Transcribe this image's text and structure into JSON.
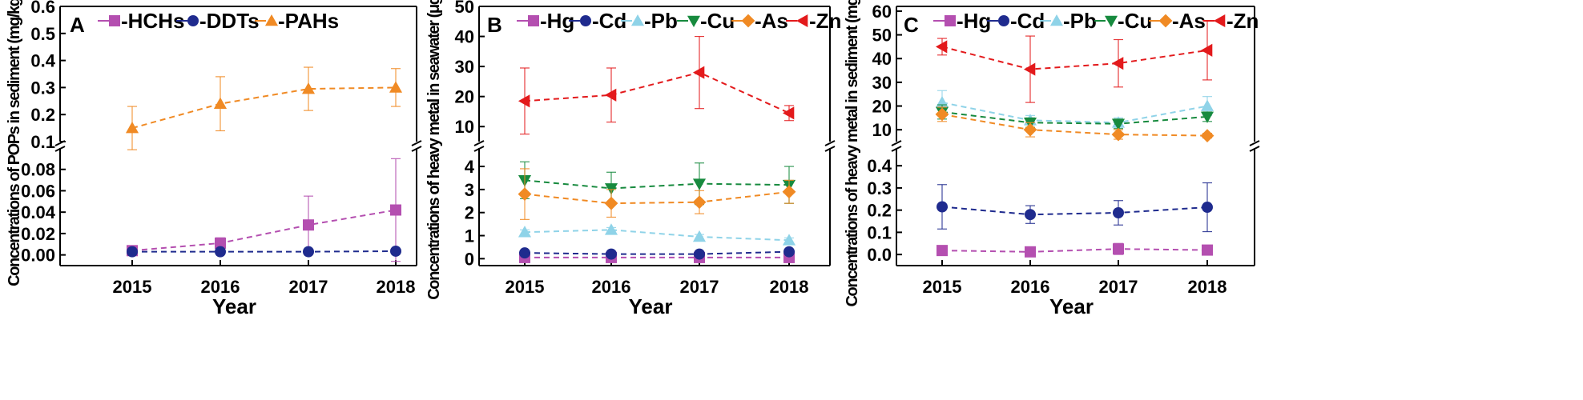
{
  "chart_data": [
    {
      "type": "line",
      "panel_label": "A",
      "title": "",
      "xlabel": "Year",
      "ylabel": "Concentrations of POPs in sediment (mg/kg)",
      "categories": [
        "2015",
        "2016",
        "2017",
        "2018"
      ],
      "broken_axis": true,
      "upper_axis": {
        "ylim": [
          0.1,
          0.6
        ],
        "ticks": [
          "0.1",
          "0.2",
          "0.3",
          "0.4",
          "0.5",
          "0.6"
        ]
      },
      "lower_axis": {
        "ylim": [
          -0.01,
          0.1
        ],
        "ticks": [
          "0.00",
          "0.02",
          "0.04",
          "0.06",
          "0.08"
        ]
      },
      "legend_position": "top",
      "series": [
        {
          "name": "HCHs",
          "legend": "-HCHs",
          "marker": "square",
          "color": "#b44fb0",
          "segment": "lower",
          "values": [
            0.004,
            0.011,
            0.028,
            0.042
          ],
          "err_low": [
            0.002,
            0.005,
            0.027,
            0.048
          ],
          "err_high": [
            0.002,
            0.005,
            0.027,
            0.048
          ]
        },
        {
          "name": "DDTs",
          "legend": "-DDTs",
          "marker": "circle",
          "color": "#1f2b8e",
          "segment": "lower",
          "values": [
            0.003,
            0.003,
            0.003,
            0.0035
          ],
          "err_low": [
            0,
            0,
            0,
            0
          ],
          "err_high": [
            0,
            0,
            0,
            0
          ]
        },
        {
          "name": "PAHs",
          "legend": "-PAHs",
          "marker": "triangle-up",
          "color": "#f08a24",
          "segment": "upper",
          "values": [
            0.15,
            0.24,
            0.295,
            0.3
          ],
          "err_low": [
            0.08,
            0.1,
            0.08,
            0.07
          ],
          "err_high": [
            0.08,
            0.1,
            0.08,
            0.07
          ]
        }
      ]
    },
    {
      "type": "line",
      "panel_label": "B",
      "title": "",
      "xlabel": "Year",
      "ylabel": "Concentrations of heavy metal in seawater (μg/L)",
      "categories": [
        "2015",
        "2016",
        "2017",
        "2018"
      ],
      "broken_axis": true,
      "upper_axis": {
        "ylim": [
          5,
          50
        ],
        "ticks": [
          "10",
          "20",
          "30",
          "40",
          "50"
        ]
      },
      "lower_axis": {
        "ylim": [
          -0.3,
          4.8
        ],
        "ticks": [
          "0",
          "1",
          "2",
          "3",
          "4"
        ]
      },
      "legend_position": "top",
      "series": [
        {
          "name": "Hg",
          "legend": "-Hg",
          "marker": "square",
          "color": "#b44fb0",
          "segment": "lower",
          "values": [
            0.05,
            0.05,
            0.05,
            0.05
          ],
          "err_low": [
            0,
            0,
            0,
            0
          ],
          "err_high": [
            0,
            0,
            0,
            0
          ]
        },
        {
          "name": "Cd",
          "legend": "-Cd",
          "marker": "circle",
          "color": "#1f2b8e",
          "segment": "lower",
          "values": [
            0.25,
            0.2,
            0.2,
            0.3
          ],
          "err_low": [
            0.05,
            0.05,
            0.05,
            0.05
          ],
          "err_high": [
            0.05,
            0.05,
            0.05,
            0.05
          ]
        },
        {
          "name": "Pb",
          "legend": "-Pb",
          "marker": "triangle-up",
          "color": "#8fd3e8",
          "segment": "lower",
          "values": [
            1.15,
            1.25,
            0.95,
            0.8
          ],
          "err_low": [
            0.1,
            0.1,
            0.1,
            0.1
          ],
          "err_high": [
            0.1,
            0.1,
            0.1,
            0.1
          ]
        },
        {
          "name": "Cu",
          "legend": "-Cu",
          "marker": "triangle-down",
          "color": "#178a3e",
          "segment": "lower",
          "values": [
            3.4,
            3.05,
            3.25,
            3.2
          ],
          "err_low": [
            0.8,
            0.7,
            0.9,
            0.8
          ],
          "err_high": [
            0.8,
            0.7,
            0.9,
            0.8
          ]
        },
        {
          "name": "As",
          "legend": "-As",
          "marker": "diamond",
          "color": "#f08a24",
          "segment": "lower",
          "values": [
            2.8,
            2.4,
            2.45,
            2.9
          ],
          "err_low": [
            1.1,
            0.6,
            0.5,
            0.5
          ],
          "err_high": [
            1.1,
            0.6,
            0.5,
            0.5
          ]
        },
        {
          "name": "Zn",
          "legend": "-Zn",
          "marker": "triangle-left",
          "color": "#e31a1c",
          "segment": "upper",
          "values": [
            18.5,
            20.5,
            28,
            14.5
          ],
          "err_low": [
            11,
            9,
            12,
            2.5
          ],
          "err_high": [
            11,
            9,
            12,
            2.5
          ]
        }
      ]
    },
    {
      "type": "line",
      "panel_label": "C",
      "title": "",
      "xlabel": "Year",
      "ylabel": "Concentrations of heavy metal in sediment (mg/kg)",
      "categories": [
        "2015",
        "2016",
        "2017",
        "2018"
      ],
      "broken_axis": true,
      "upper_axis": {
        "ylim": [
          5,
          62
        ],
        "ticks": [
          "10",
          "20",
          "30",
          "40",
          "50",
          "60"
        ]
      },
      "lower_axis": {
        "ylim": [
          -0.05,
          0.48
        ],
        "ticks": [
          "0.0",
          "0.1",
          "0.2",
          "0.3",
          "0.4"
        ]
      },
      "legend_position": "top",
      "series": [
        {
          "name": "Hg",
          "legend": "-Hg",
          "marker": "square",
          "color": "#b44fb0",
          "segment": "lower",
          "values": [
            0.018,
            0.012,
            0.025,
            0.02
          ],
          "err_low": [
            0.005,
            0.005,
            0.025,
            0.005
          ],
          "err_high": [
            0.005,
            0.005,
            0.025,
            0.005
          ]
        },
        {
          "name": "Cd",
          "legend": "-Cd",
          "marker": "circle",
          "color": "#1f2b8e",
          "segment": "lower",
          "values": [
            0.215,
            0.18,
            0.188,
            0.213
          ],
          "err_low": [
            0.1,
            0.04,
            0.055,
            0.11
          ],
          "err_high": [
            0.1,
            0.04,
            0.055,
            0.11
          ]
        },
        {
          "name": "Pb",
          "legend": "-Pb",
          "marker": "triangle-up",
          "color": "#8fd3e8",
          "segment": "upper",
          "values": [
            21.5,
            14,
            13,
            20
          ],
          "err_low": [
            5,
            2,
            2,
            4
          ],
          "err_high": [
            5,
            2,
            2,
            4
          ]
        },
        {
          "name": "Cu",
          "legend": "-Cu",
          "marker": "triangle-down",
          "color": "#178a3e",
          "segment": "upper",
          "values": [
            17.5,
            13,
            12.5,
            15.5
          ],
          "err_low": [
            3,
            2,
            2,
            2
          ],
          "err_high": [
            3,
            2,
            2,
            2
          ]
        },
        {
          "name": "As",
          "legend": "-As",
          "marker": "diamond",
          "color": "#f08a24",
          "segment": "upper",
          "values": [
            16.5,
            10,
            8,
            7.5
          ],
          "err_low": [
            3,
            3,
            2,
            1
          ],
          "err_high": [
            3,
            3,
            2,
            1
          ]
        },
        {
          "name": "Zn",
          "legend": "-Zn",
          "marker": "triangle-left",
          "color": "#e31a1c",
          "segment": "upper",
          "values": [
            45,
            35.5,
            38,
            43.5
          ],
          "err_low": [
            3.5,
            14,
            10,
            12.5
          ],
          "err_high": [
            3.5,
            14,
            10,
            12.5
          ]
        }
      ]
    }
  ]
}
